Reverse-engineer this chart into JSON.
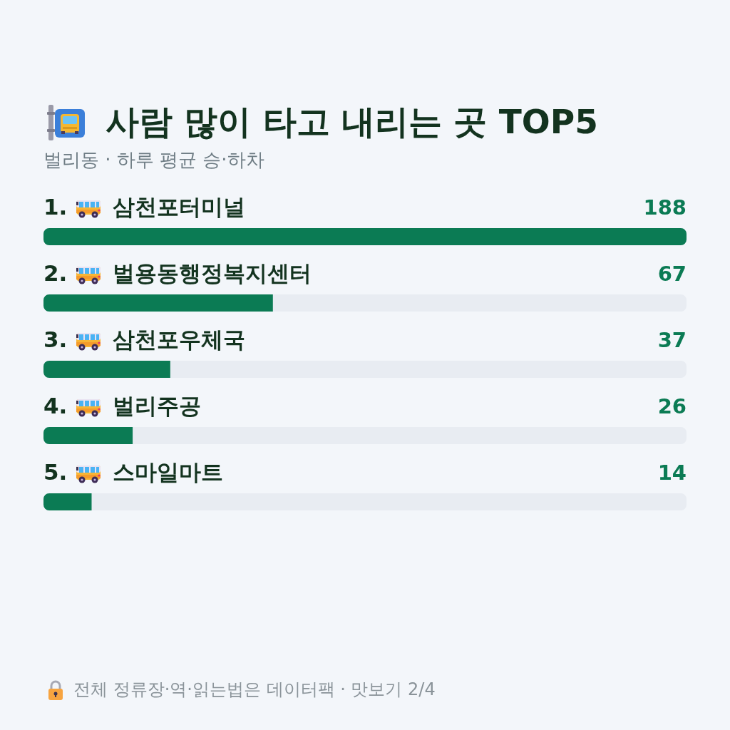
{
  "chart_data": {
    "type": "bar",
    "orientation": "horizontal",
    "title": "사람 많이 타고 내리는 곳 TOP5",
    "subtitle": "벌리동 · 하루 평균 승·하차",
    "categories": [
      "1. 삼천포터미널",
      "2. 벌용동행정복지센터",
      "3. 삼천포우체국",
      "4. 벌리주공",
      "5. 스마일마트"
    ],
    "values": [
      188,
      67,
      37,
      26,
      14
    ],
    "color": "#0b7b54",
    "xlim": [
      0,
      188
    ],
    "data_labels": true,
    "tick_labels": false,
    "grid": false,
    "legend": false,
    "annotations": [
      "전체 정류장·역·읽는법은 데이터팩 · 맛보기 2/4"
    ]
  }
}
